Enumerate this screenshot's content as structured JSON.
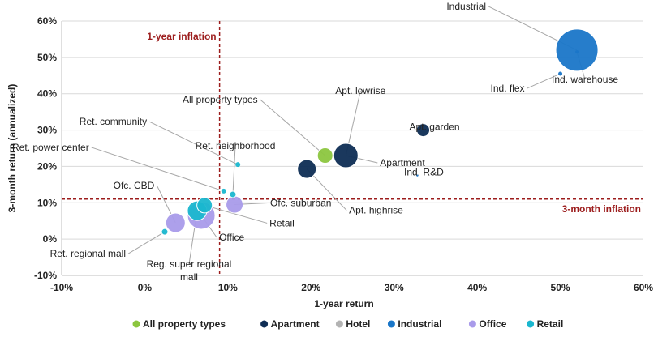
{
  "chart_data": {
    "type": "scatter",
    "title": "",
    "xlabel": "1-year return",
    "ylabel": "3-month return (annualized)",
    "xlim": [
      -10,
      60
    ],
    "ylim": [
      -10,
      60
    ],
    "x_ticks": [
      "-10%",
      "0%",
      "10%",
      "20%",
      "30%",
      "40%",
      "50%",
      "60%"
    ],
    "y_ticks": [
      "-10%",
      "0%",
      "10%",
      "20%",
      "30%",
      "40%",
      "50%",
      "60%"
    ],
    "grid": "horizontal",
    "legend_position": "bottom",
    "colors": {
      "All property types": "#8cc63f",
      "Apartment": "#0e2d54",
      "Hotel": "#b3b3b3",
      "Industrial": "#1a76c8",
      "Office": "#a99bea",
      "Retail": "#1ab7cf",
      "reference_line": "#9c1d1d",
      "leader": "#a6a6a6"
    },
    "legend": [
      "All property types",
      "Apartment",
      "Hotel",
      "Industrial",
      "Office",
      "Retail"
    ],
    "reference_lines": [
      {
        "axis": "x",
        "value": 9,
        "label": "1-year inflation"
      },
      {
        "axis": "y",
        "value": 11,
        "label": "3-month inflation"
      }
    ],
    "points": [
      {
        "label": "Industrial",
        "group": "Industrial",
        "x": 52,
        "y": 52,
        "size": 26,
        "label_dx": -112,
        "label_dy": -50
      },
      {
        "label": "Ind. warehouse",
        "group": "Industrial",
        "x": 52,
        "y": 51.5,
        "size": 2,
        "label_dx": 10,
        "label_dy": 38
      },
      {
        "label": "Ind. flex",
        "group": "Industrial",
        "x": 50,
        "y": 45.5,
        "size": 2.5,
        "label_dx": -44,
        "label_dy": 22
      },
      {
        "label": "Apt. garden",
        "group": "Apartment",
        "x": 33.5,
        "y": 30,
        "size": 8,
        "label_dx": 14,
        "label_dy": 0
      },
      {
        "label": "Ind. R&D",
        "group": "Industrial",
        "x": 32.8,
        "y": 17.5,
        "size": 1.2,
        "label_dx": 8,
        "label_dy": 0
      },
      {
        "label": "Apt. lowrise",
        "group": "Apartment",
        "x": 24.2,
        "y": 23,
        "size": 15,
        "label_dx": 18,
        "label_dy": -76
      },
      {
        "label": "Apartment",
        "group": "Apartment",
        "x": 24.2,
        "y": 23,
        "size": 0,
        "label_dx": 42,
        "label_dy": 13
      },
      {
        "label": "All property types",
        "group": "All property types",
        "x": 21.7,
        "y": 23,
        "size": 9.5,
        "label_dx": -83,
        "label_dy": -65
      },
      {
        "label": "Apt. highrise",
        "group": "Apartment",
        "x": 19.5,
        "y": 19.3,
        "size": 11.5,
        "label_dx": 52,
        "label_dy": 55
      },
      {
        "label": "Ret. community",
        "group": "Retail",
        "x": 11.2,
        "y": 20.5,
        "size": 3,
        "label_dx": -112,
        "label_dy": -49
      },
      {
        "label": "Ret. neighborhood",
        "group": "Retail",
        "x": 10.6,
        "y": 12.3,
        "size": 4,
        "label_dx": 3,
        "label_dy": -56
      },
      {
        "label": "Ret. power center",
        "group": "Retail",
        "x": 9.5,
        "y": 13.2,
        "size": 3.5,
        "label_dx": -166,
        "label_dy": -50
      },
      {
        "label": "Ofc. suburban",
        "group": "Office",
        "x": 10.8,
        "y": 9.5,
        "size": 10.5,
        "label_dx": 44,
        "label_dy": 2
      },
      {
        "label": "Retail",
        "group": "Retail",
        "x": 7.2,
        "y": 9.3,
        "size": 9.5,
        "label_dx": 80,
        "label_dy": 26
      },
      {
        "label": "Ofc. CBD",
        "group": "Office",
        "x": 3.7,
        "y": 4.5,
        "size": 12,
        "label_dx": -26,
        "label_dy": -42
      },
      {
        "label": "Office",
        "group": "Office",
        "x": 6.8,
        "y": 6.5,
        "size": 17,
        "label_dx": 22,
        "label_dy": 31
      },
      {
        "label": "Reg. super regional mall",
        "group": "Retail",
        "x": 6.3,
        "y": 7.8,
        "size": 12,
        "label_dx": -10,
        "label_dy": 70
      },
      {
        "label": "Ret. regional mall",
        "group": "Retail",
        "x": 2.4,
        "y": 2,
        "size": 4,
        "label_dx": -48,
        "label_dy": 31
      }
    ]
  }
}
